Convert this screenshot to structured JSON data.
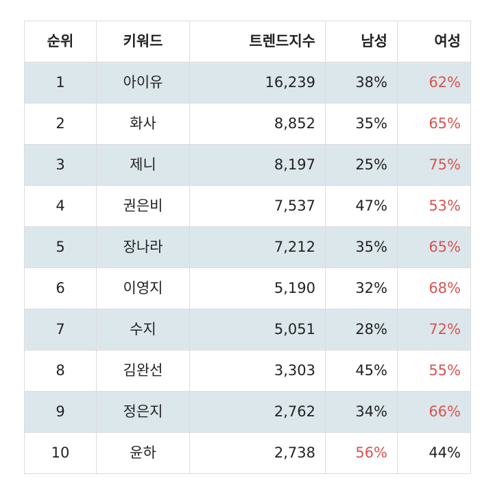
{
  "headers": [
    "순위",
    "키워드",
    "트렌드지수",
    "남성",
    "여성"
  ],
  "rows": [
    {
      "rank": "1",
      "keyword": "아이유",
      "trend": "16,239",
      "male": "38%",
      "female": "62%",
      "highlight": "female"
    },
    {
      "rank": "2",
      "keyword": "화사",
      "trend": "8,852",
      "male": "35%",
      "female": "65%",
      "highlight": "female"
    },
    {
      "rank": "3",
      "keyword": "제니",
      "trend": "8,197",
      "male": "25%",
      "female": "75%",
      "highlight": "female"
    },
    {
      "rank": "4",
      "keyword": "권은비",
      "trend": "7,537",
      "male": "47%",
      "female": "53%",
      "highlight": "female"
    },
    {
      "rank": "5",
      "keyword": "장나라",
      "trend": "7,212",
      "male": "35%",
      "female": "65%",
      "highlight": "female"
    },
    {
      "rank": "6",
      "keyword": "이영지",
      "trend": "5,190",
      "male": "32%",
      "female": "68%",
      "highlight": "female"
    },
    {
      "rank": "7",
      "keyword": "수지",
      "trend": "5,051",
      "male": "28%",
      "female": "72%",
      "highlight": "female"
    },
    {
      "rank": "8",
      "keyword": "김완선",
      "trend": "3,303",
      "male": "45%",
      "female": "55%",
      "highlight": "female"
    },
    {
      "rank": "9",
      "keyword": "정은지",
      "trend": "2,762",
      "male": "34%",
      "female": "66%",
      "highlight": "female"
    },
    {
      "rank": "10",
      "keyword": "윤하",
      "trend": "2,738",
      "male": "56%",
      "female": "44%",
      "highlight": "male"
    }
  ],
  "colors": {
    "highlight": "#d9534f",
    "stripe": "#dce7ec",
    "border": "#dcdcdc"
  }
}
